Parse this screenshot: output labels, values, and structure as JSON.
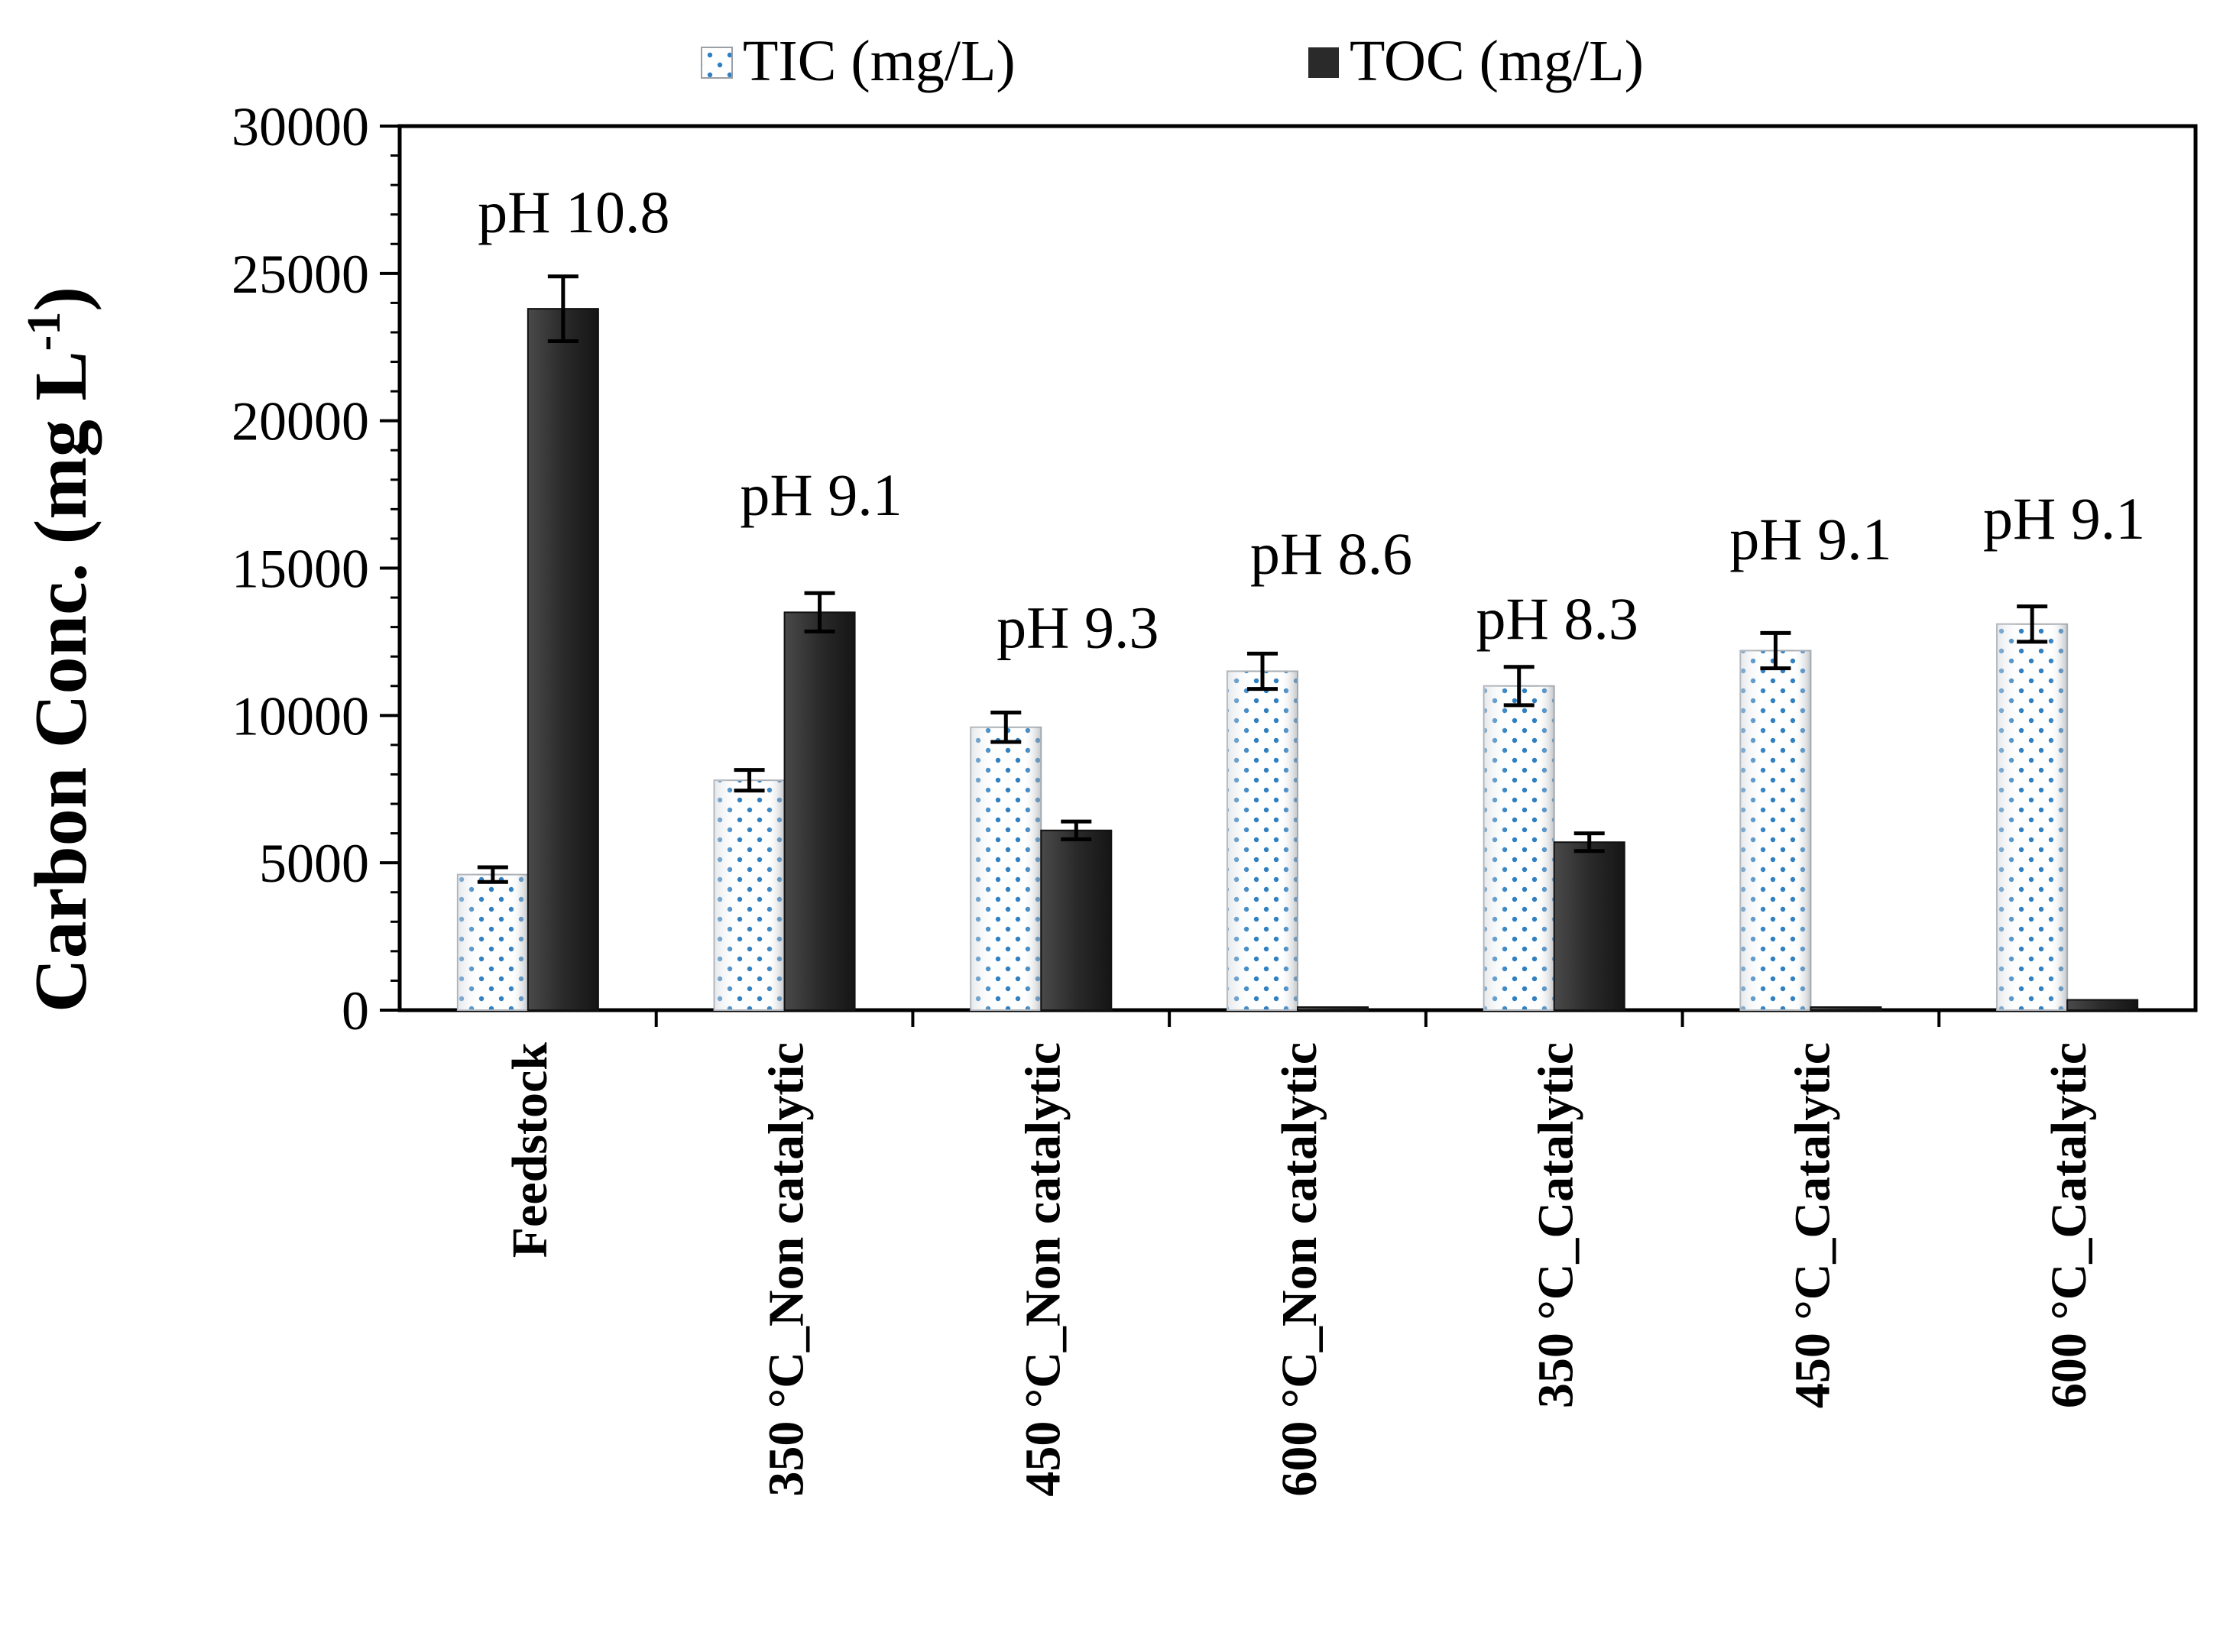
{
  "chart_data": {
    "type": "bar",
    "title": "",
    "xlabel": "",
    "ylabel": "Carbon Conc. (mg L",
    "ylabel_sup": "-1",
    "ylabel_close": ")",
    "ylim": [
      0,
      30000
    ],
    "yticks": [
      0,
      5000,
      10000,
      15000,
      20000,
      25000,
      30000
    ],
    "grid": false,
    "legend_position": "top",
    "categories": [
      "Feedstock",
      "350 °C_Non catalytic",
      "450 °C_Non catalytic",
      "600 °C_Non catalytic",
      "350 °C_Catalytic",
      "450 °C_Catalytic",
      "600 °C_Catalytic"
    ],
    "series": [
      {
        "name": "TIC (mg/L)",
        "pattern": "dotted",
        "color": "#2f7fc1",
        "values": [
          4600,
          7800,
          9600,
          11500,
          11000,
          12200,
          13100
        ],
        "errors": [
          250,
          350,
          500,
          600,
          650,
          600,
          600
        ]
      },
      {
        "name": "TOC (mg/L)",
        "pattern": "solid",
        "color": "#2a2a2a",
        "values": [
          23800,
          13500,
          6100,
          100,
          5700,
          50,
          350
        ],
        "errors": [
          1100,
          650,
          300,
          0,
          300,
          0,
          0
        ]
      }
    ],
    "annotations": [
      "pH 10.8",
      "pH 9.1",
      "pH 9.3",
      "pH 8.6",
      "pH 8.3",
      "pH 9.1",
      "pH 9.1"
    ]
  }
}
